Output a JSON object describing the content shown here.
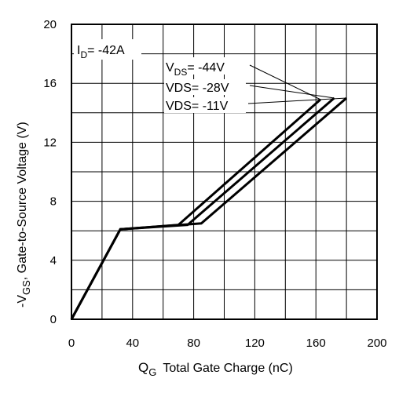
{
  "chart_data": {
    "type": "line",
    "x_axis": {
      "label_main": "Q",
      "label_sub": "G",
      "label_rest": "Total Gate Charge (nC)",
      "lim": [
        0,
        200
      ],
      "ticks": [
        0,
        40,
        80,
        120,
        160,
        200
      ],
      "gridlines": [
        0,
        20,
        40,
        60,
        80,
        100,
        120,
        140,
        160,
        180,
        200
      ]
    },
    "y_axis": {
      "label_prefix": "-V",
      "label_sub": "GS",
      "label_rest": ", Gate-to-Source Voltage (V)",
      "lim": [
        0,
        20
      ],
      "ticks": [
        0,
        4,
        8,
        12,
        16,
        20
      ],
      "gridlines": [
        0,
        2,
        4,
        6,
        8,
        10,
        12,
        14,
        16,
        18,
        20
      ]
    },
    "grid": true,
    "annotations": {
      "id_main": "I",
      "id_sub": "D",
      "id_rest": "= -42A",
      "vds_44_main": "V",
      "vds_44_sub": "DS",
      "vds_44_rest": "= -44V",
      "vds_28": "VDS= -28V",
      "vds_11": "VDS= -11V"
    },
    "series": [
      {
        "annotation": "vds_44",
        "points": [
          [
            0,
            0
          ],
          [
            32,
            6.1
          ],
          [
            70,
            6.4
          ],
          [
            163,
            14.9
          ]
        ]
      },
      {
        "annotation": "vds_28",
        "points": [
          [
            0,
            0
          ],
          [
            32,
            6.1
          ],
          [
            76,
            6.4
          ],
          [
            172,
            15.0
          ]
        ]
      },
      {
        "annotation": "vds_11",
        "points": [
          [
            0,
            0
          ],
          [
            32,
            6.1
          ],
          [
            85,
            6.5
          ],
          [
            180,
            15.0
          ]
        ]
      }
    ]
  }
}
